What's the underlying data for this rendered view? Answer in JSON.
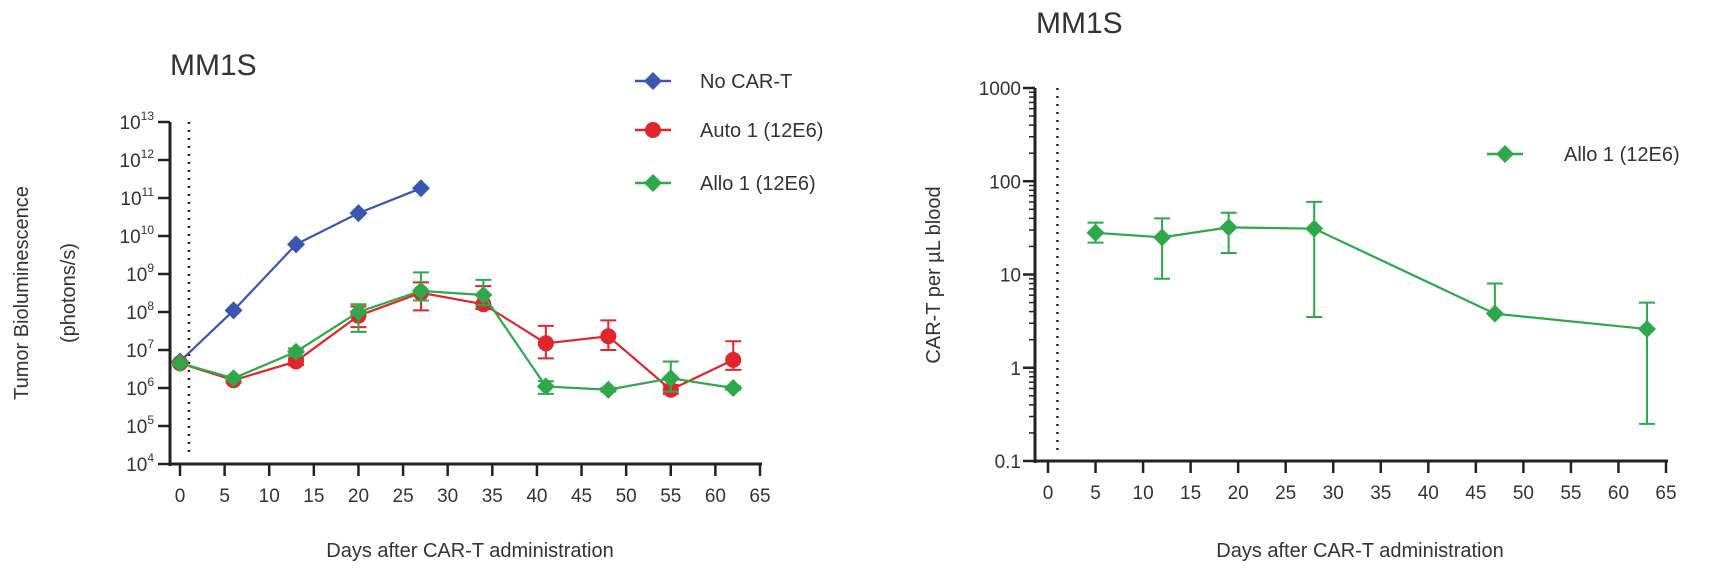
{
  "chart_data": [
    {
      "type": "line",
      "title": "MM1S",
      "xlabel": "Days after CAR-T administration",
      "ylabel": "Tumor Bioluminescence",
      "ylabel_units": "(photons/s)",
      "yscale": "log",
      "xlim": [
        -1,
        65
      ],
      "ylim": [
        10000.0,
        10000000000000.0
      ],
      "xticks": [
        0,
        5,
        10,
        15,
        20,
        25,
        30,
        35,
        40,
        45,
        50,
        55,
        60,
        65
      ],
      "yticks_exp": [
        4,
        5,
        6,
        7,
        8,
        9,
        10,
        11,
        12,
        13
      ],
      "ytick_base": "10",
      "vline_day": 1,
      "legend_position": "top-right",
      "series": [
        {
          "name": "No CAR-T",
          "color": "#3a56b0",
          "marker": "diamond",
          "x": [
            0,
            6,
            13,
            20,
            27
          ],
          "y": [
            5000000.0,
            110000000.0,
            6000000000.0,
            40000000000.0,
            180000000000.0
          ],
          "err": null
        },
        {
          "name": "Auto 1 (12E6)",
          "color": "#e0262c",
          "marker": "circle",
          "x": [
            0,
            6,
            13,
            20,
            27,
            34,
            41,
            48,
            55,
            62
          ],
          "y": [
            4500000.0,
            1600000.0,
            5000000.0,
            80000000.0,
            320000000.0,
            160000000.0,
            15000000.0,
            23000000.0,
            900000.0,
            5500000.0
          ],
          "err": [
            [
              4000000.0,
              5000000.0
            ],
            [
              1400000.0,
              1900000.0
            ],
            [
              4000000.0,
              6000000.0
            ],
            [
              40000000.0,
              140000000.0
            ],
            [
              110000000.0,
              600000000.0
            ],
            [
              120000000.0,
              480000000.0
            ],
            [
              6000000.0,
              43000000.0
            ],
            [
              10000000.0,
              60000000.0
            ],
            [
              700000.0,
              1200000.0
            ],
            [
              3000000.0,
              17000000.0
            ]
          ]
        },
        {
          "name": "Allo 1 (12E6)",
          "color": "#2ea84a",
          "marker": "diamond",
          "x": [
            0,
            6,
            13,
            20,
            27,
            34,
            41,
            48,
            55,
            62
          ],
          "y": [
            4500000.0,
            1800000.0,
            9000000.0,
            100000000.0,
            360000000.0,
            280000000.0,
            1100000.0,
            900000.0,
            1800000.0,
            1000000.0
          ],
          "err": [
            [
              4000000.0,
              5000000.0
            ],
            [
              1600000.0,
              2000000.0
            ],
            [
              7000000.0,
              11000000.0
            ],
            [
              30000000.0,
              160000000.0
            ],
            [
              200000000.0,
              1100000000.0
            ],
            [
              150000000.0,
              700000000.0
            ],
            [
              700000.0,
              1500000.0
            ],
            [
              800000.0,
              1000000.0
            ],
            [
              800000.0,
              5000000.0
            ],
            [
              900000.0,
              1100000.0
            ]
          ]
        }
      ]
    },
    {
      "type": "line",
      "title": "MM1S",
      "xlabel": "Days after CAR-T administration",
      "ylabel": "CAR-T per µL blood",
      "yscale": "log",
      "xlim": [
        -1,
        65
      ],
      "ylim": [
        0.1,
        1000
      ],
      "xticks": [
        0,
        5,
        10,
        15,
        20,
        25,
        30,
        35,
        40,
        45,
        50,
        55,
        60,
        65
      ],
      "yticks": [
        "0.1",
        "1",
        "10",
        "100",
        "1000"
      ],
      "vline_day": 1,
      "legend_position": "right",
      "series": [
        {
          "name": "Allo 1 (12E6)",
          "color": "#2ea84a",
          "marker": "diamond",
          "x": [
            5,
            12,
            19,
            28,
            47,
            63
          ],
          "y": [
            28,
            25,
            32,
            31,
            3.8,
            2.6
          ],
          "err": [
            [
              22,
              36
            ],
            [
              9,
              40
            ],
            [
              17,
              46
            ],
            [
              3.5,
              60
            ],
            [
              3.8,
              8
            ],
            [
              0.25,
              5
            ]
          ]
        }
      ]
    }
  ]
}
